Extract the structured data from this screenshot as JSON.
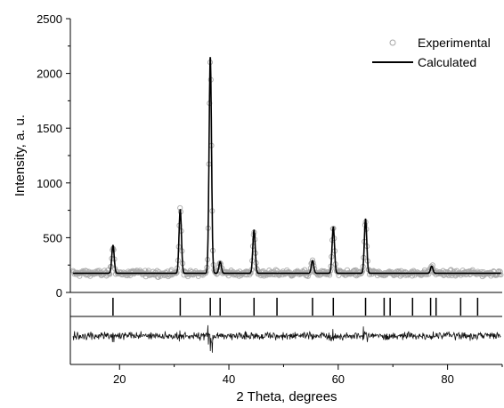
{
  "chart_data": {
    "type": "line",
    "title": "",
    "xlabel": "2 Theta, degrees",
    "ylabel": "Intensity, a. u.",
    "xlim": [
      11,
      90
    ],
    "ylim": [
      0,
      2500
    ],
    "x_ticks": [
      20,
      40,
      60,
      80
    ],
    "x_tick_labels": [
      "20",
      "40",
      "60",
      "80"
    ],
    "y_ticks": [
      0,
      500,
      1000,
      1500,
      2000,
      2500
    ],
    "y_tick_labels": [
      "0",
      "500",
      "1000",
      "1500",
      "2000",
      "2500"
    ],
    "grid": false,
    "legend_position": "top-right",
    "background_intensity": 175,
    "peaks": [
      {
        "two_theta": 18.8,
        "intensity": 430
      },
      {
        "two_theta": 31.1,
        "intensity": 760
      },
      {
        "two_theta": 36.6,
        "intensity": 2150
      },
      {
        "two_theta": 38.4,
        "intensity": 280
      },
      {
        "two_theta": 44.6,
        "intensity": 570
      },
      {
        "two_theta": 55.3,
        "intensity": 290
      },
      {
        "two_theta": 59.1,
        "intensity": 600
      },
      {
        "two_theta": 65.0,
        "intensity": 670
      },
      {
        "two_theta": 77.1,
        "intensity": 240
      }
    ],
    "bragg_positions": [
      18.8,
      31.1,
      36.6,
      38.4,
      44.6,
      48.8,
      55.3,
      59.1,
      65.0,
      68.4,
      69.5,
      73.6,
      76.9,
      77.9,
      82.4,
      85.5
    ],
    "series": [
      {
        "name": "Experimental",
        "marker": "open-circle",
        "color": "#a8a8a8"
      },
      {
        "name": "Calculated",
        "marker": "line",
        "color": "#000000"
      }
    ]
  }
}
